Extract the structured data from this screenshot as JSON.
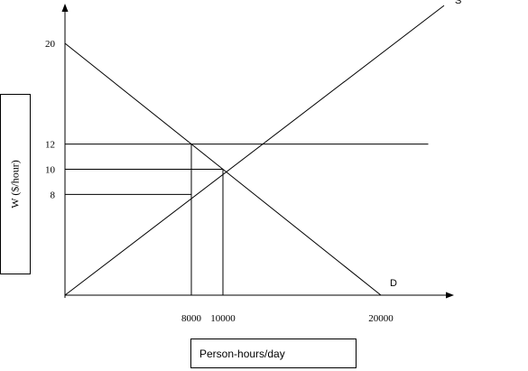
{
  "chart_data": {
    "type": "line",
    "ylabel": "W ($/hour)",
    "xlabel": "Person-hours/day",
    "x_ticks": [
      {
        "value": 8000,
        "label": "8000"
      },
      {
        "value": 10000,
        "label": "10000"
      },
      {
        "value": 20000,
        "label": "20000"
      }
    ],
    "y_ticks": [
      {
        "value": 8,
        "label": "8"
      },
      {
        "value": 10,
        "label": "10"
      },
      {
        "value": 12,
        "label": "12"
      },
      {
        "value": 20,
        "label": "20"
      }
    ],
    "xlim": [
      0,
      24000
    ],
    "ylim": [
      0,
      22
    ],
    "series": [
      {
        "name": "S",
        "x": [
          0,
          24000
        ],
        "y": [
          0,
          23
        ]
      },
      {
        "name": "D",
        "x": [
          0,
          20000
        ],
        "y": [
          20,
          0
        ]
      }
    ],
    "reference_lines": [
      {
        "kind": "horizontal",
        "from": [
          0,
          12
        ],
        "to": [
          23000,
          12
        ]
      },
      {
        "kind": "horizontal",
        "from": [
          0,
          10
        ],
        "to": [
          10000,
          10
        ]
      },
      {
        "kind": "horizontal",
        "from": [
          0,
          8
        ],
        "to": [
          8000,
          8
        ]
      },
      {
        "kind": "vertical",
        "from": [
          8000,
          12
        ],
        "to": [
          8000,
          0
        ]
      },
      {
        "kind": "vertical",
        "from": [
          10000,
          10
        ],
        "to": [
          10000,
          0
        ]
      }
    ],
    "grid": false,
    "legend": "none"
  }
}
